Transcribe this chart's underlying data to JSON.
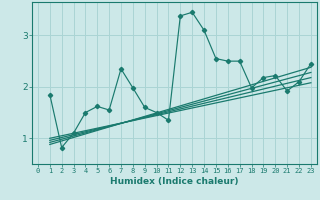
{
  "xlabel": "Humidex (Indice chaleur)",
  "bg_color": "#cce8e8",
  "grid_color": "#aad4d4",
  "line_color": "#1a7a6e",
  "xlim": [
    -0.5,
    23.5
  ],
  "ylim": [
    0.5,
    3.65
  ],
  "yticks": [
    1,
    2,
    3
  ],
  "xticks": [
    0,
    1,
    2,
    3,
    4,
    5,
    6,
    7,
    8,
    9,
    10,
    11,
    12,
    13,
    14,
    15,
    16,
    17,
    18,
    19,
    20,
    21,
    22,
    23
  ],
  "data_x": [
    1,
    2,
    3,
    4,
    5,
    6,
    7,
    8,
    9,
    10,
    11,
    12,
    13,
    14,
    15,
    16,
    17,
    18,
    19,
    20,
    21,
    22,
    23
  ],
  "data_y": [
    1.85,
    0.82,
    1.1,
    1.5,
    1.62,
    1.55,
    2.35,
    1.98,
    1.6,
    1.5,
    1.35,
    3.38,
    3.45,
    3.1,
    2.55,
    2.5,
    2.5,
    1.98,
    2.18,
    2.22,
    1.92,
    2.1,
    2.45
  ],
  "reg_lines": [
    {
      "x0": 1,
      "y0": 0.88,
      "x1": 23,
      "y1": 2.38
    },
    {
      "x0": 1,
      "y0": 0.92,
      "x1": 23,
      "y1": 2.28
    },
    {
      "x0": 1,
      "y0": 0.96,
      "x1": 23,
      "y1": 2.18
    },
    {
      "x0": 1,
      "y0": 1.0,
      "x1": 23,
      "y1": 2.08
    }
  ]
}
